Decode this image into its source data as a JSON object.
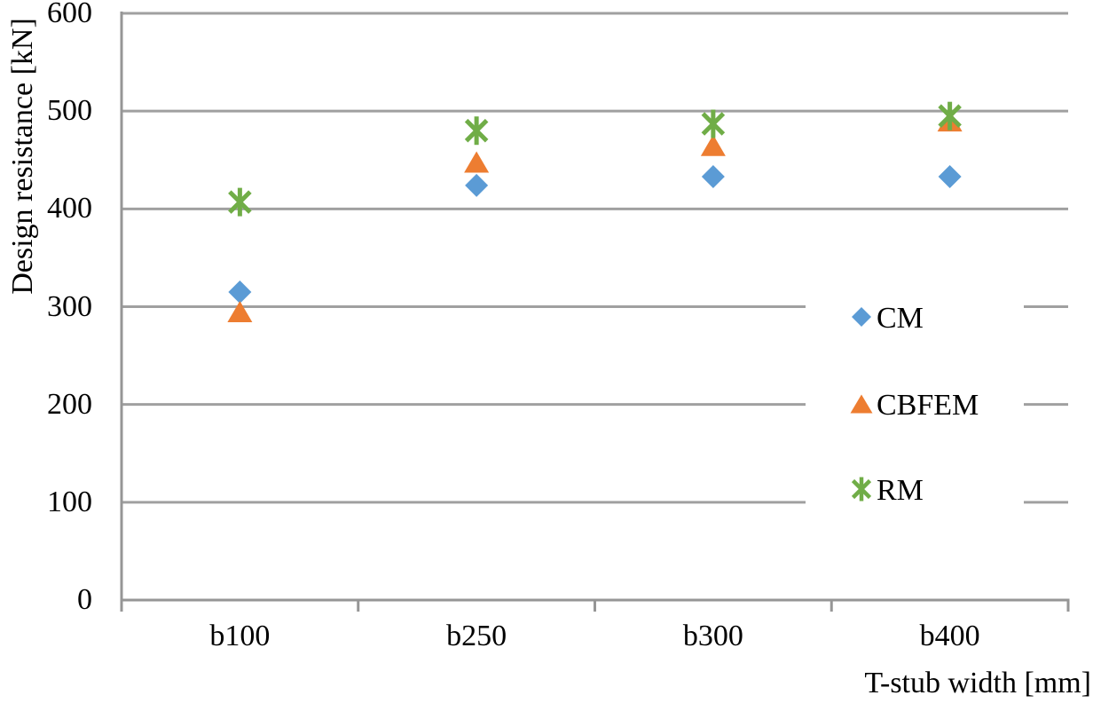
{
  "chart_data": {
    "type": "scatter",
    "title": "",
    "categories": [
      "b100",
      "b250",
      "b300",
      "b400"
    ],
    "series": [
      {
        "name": "CM",
        "marker": "diamond",
        "color": "#5B9BD5",
        "values": [
          315,
          424,
          433,
          433
        ]
      },
      {
        "name": "CBFEM",
        "marker": "triangle",
        "color": "#ED7D31",
        "values": [
          295,
          448,
          465,
          490
        ]
      },
      {
        "name": "RM",
        "marker": "asterisk",
        "color": "#70AD47",
        "values": [
          407,
          480,
          487,
          495
        ]
      }
    ],
    "xlabel": "T-stub width [mm]",
    "ylabel": "Design resistance [kN]",
    "ylim": [
      0,
      600
    ],
    "ytick_step": 100,
    "ytick_labels": [
      "0",
      "100",
      "200",
      "300",
      "400",
      "500",
      "600"
    ],
    "grid": true,
    "legend_position": "overlay-right-middle"
  },
  "colors": {
    "axis": "#969696",
    "gridline": "#A0A0A0",
    "text": "#000000",
    "background": "#FFFFFF"
  }
}
